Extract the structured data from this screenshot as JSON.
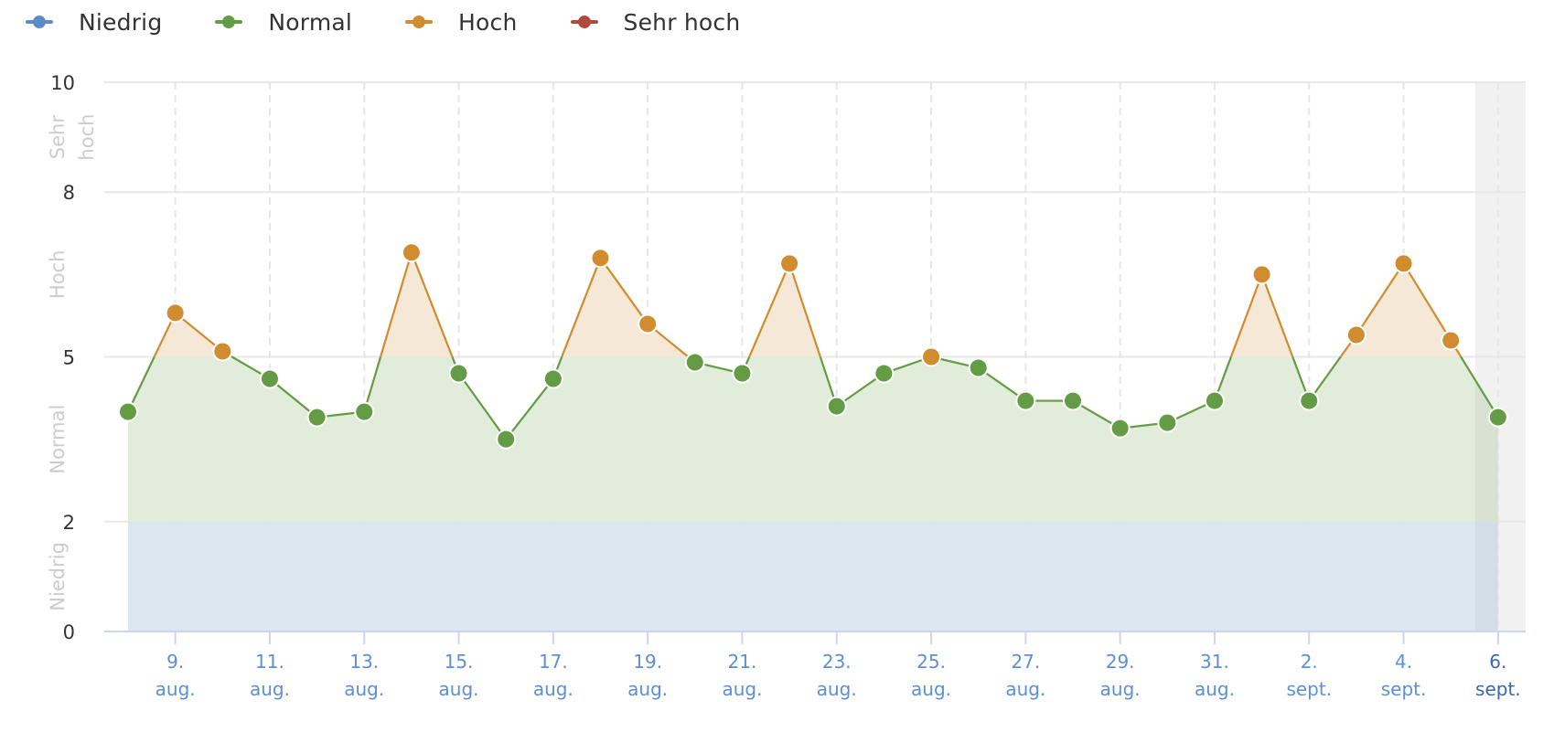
{
  "legend": {
    "items": [
      {
        "label": "Niedrig",
        "color": "#5b8bc8",
        "icon": "legend-line-dot-icon"
      },
      {
        "label": "Normal",
        "color": "#639c45",
        "icon": "legend-line-dot-icon"
      },
      {
        "label": "Hoch",
        "color": "#d08c2e",
        "icon": "legend-line-dot-icon"
      },
      {
        "label": "Sehr hoch",
        "color": "#b04a3c",
        "icon": "legend-line-dot-icon"
      }
    ]
  },
  "axis": {
    "y_ticks": [
      "0",
      "2",
      "5",
      "8",
      "10"
    ],
    "y_bands": [
      {
        "label": "Niedrig",
        "from": 0,
        "to": 2
      },
      {
        "label": "Normal",
        "from": 2,
        "to": 5
      },
      {
        "label": "Hoch",
        "from": 5,
        "to": 8
      },
      {
        "label": "Sehr hoch",
        "from": 8,
        "to": 10
      }
    ],
    "x_ticks": [
      {
        "day": "9.",
        "month": "aug."
      },
      {
        "day": "11.",
        "month": "aug."
      },
      {
        "day": "13.",
        "month": "aug."
      },
      {
        "day": "15.",
        "month": "aug."
      },
      {
        "day": "17.",
        "month": "aug."
      },
      {
        "day": "19.",
        "month": "aug."
      },
      {
        "day": "21.",
        "month": "aug."
      },
      {
        "day": "23.",
        "month": "aug."
      },
      {
        "day": "25.",
        "month": "aug."
      },
      {
        "day": "27.",
        "month": "aug."
      },
      {
        "day": "29.",
        "month": "aug."
      },
      {
        "day": "31.",
        "month": "aug."
      },
      {
        "day": "2.",
        "month": "sept."
      },
      {
        "day": "4.",
        "month": "sept."
      },
      {
        "day": "6.",
        "month": "sept.",
        "current": true
      }
    ]
  },
  "colors": {
    "low": "#5b8bc8",
    "normal": "#639c45",
    "high": "#d08c2e",
    "very_high": "#b04a3c",
    "fill_low": "#dae6f0",
    "fill_normal": "#e0ebd9",
    "fill_high": "#f5e7d4",
    "today_band": "#f1f1f1"
  },
  "chart_data": {
    "type": "area",
    "title": "",
    "xlabel": "",
    "ylabel": "",
    "ylim": [
      0,
      10
    ],
    "y_ticks": [
      0,
      2,
      5,
      8,
      10
    ],
    "grid": true,
    "legend_position": "top-left",
    "legend": [
      "Niedrig",
      "Normal",
      "Hoch",
      "Sehr hoch"
    ],
    "thresholds": {
      "Niedrig": [
        0,
        2
      ],
      "Normal": [
        2,
        5
      ],
      "Hoch": [
        5,
        8
      ],
      "Sehr hoch": [
        8,
        10
      ]
    },
    "x": [
      "8. aug.",
      "9. aug.",
      "10. aug.",
      "11. aug.",
      "12. aug.",
      "13. aug.",
      "14. aug.",
      "15. aug.",
      "16. aug.",
      "17. aug.",
      "18. aug.",
      "19. aug.",
      "20. aug.",
      "21. aug.",
      "22. aug.",
      "23. aug.",
      "24. aug.",
      "25. aug.",
      "26. aug.",
      "27. aug.",
      "28. aug.",
      "29. aug.",
      "30. aug.",
      "31. aug.",
      "1. sept.",
      "2. sept.",
      "3. sept.",
      "4. sept.",
      "5. sept.",
      "6. sept."
    ],
    "values": [
      4.0,
      5.8,
      5.1,
      4.6,
      3.9,
      4.0,
      6.9,
      4.7,
      3.5,
      4.6,
      6.8,
      5.6,
      4.9,
      4.7,
      6.7,
      4.1,
      4.7,
      5.0,
      4.8,
      4.2,
      4.2,
      3.7,
      3.8,
      4.2,
      6.5,
      4.2,
      5.4,
      6.7,
      5.3,
      3.9
    ],
    "highlighted_x": "6. sept."
  }
}
